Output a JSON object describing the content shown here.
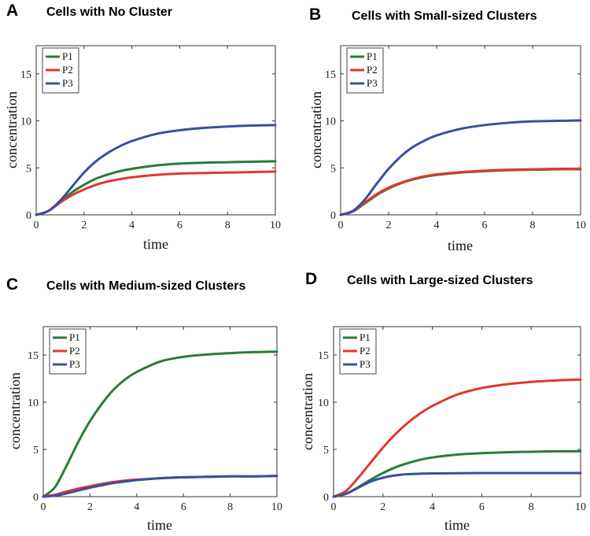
{
  "colors": {
    "P1": "#2a7b3a",
    "P2": "#e0382c",
    "P3": "#3a4ea0"
  },
  "chart_data": [
    {
      "type": "line",
      "letter": "A",
      "title": "Cells with No Cluster",
      "xlabel": "time",
      "ylabel": "concentration",
      "xlim": [
        0,
        10
      ],
      "ylim": [
        0,
        18
      ],
      "xticks": [
        0,
        2,
        4,
        6,
        8,
        10
      ],
      "yticks": [
        0,
        5,
        10,
        15
      ],
      "legend_position": "top-left",
      "x": [
        0,
        0.5,
        1,
        1.5,
        2,
        2.5,
        3,
        3.5,
        4,
        5,
        6,
        7,
        8,
        9,
        10
      ],
      "series": [
        {
          "name": "P1",
          "values": [
            0,
            0.4,
            1.4,
            2.4,
            3.2,
            3.85,
            4.3,
            4.65,
            4.9,
            5.25,
            5.45,
            5.55,
            5.6,
            5.65,
            5.7
          ]
        },
        {
          "name": "P2",
          "values": [
            0,
            0.4,
            1.3,
            2.1,
            2.7,
            3.2,
            3.55,
            3.8,
            4.0,
            4.25,
            4.4,
            4.45,
            4.5,
            4.55,
            4.6
          ]
        },
        {
          "name": "P3",
          "values": [
            0,
            0.4,
            1.5,
            3.0,
            4.5,
            5.7,
            6.6,
            7.3,
            7.85,
            8.6,
            9.0,
            9.25,
            9.4,
            9.5,
            9.55
          ]
        }
      ]
    },
    {
      "type": "line",
      "letter": "B",
      "title": "Cells with Small-sized Clusters",
      "xlabel": "time",
      "ylabel": "concentration",
      "xlim": [
        0,
        10
      ],
      "ylim": [
        0,
        18
      ],
      "xticks": [
        0,
        2,
        4,
        6,
        8,
        10
      ],
      "yticks": [
        0,
        5,
        10,
        15
      ],
      "legend_position": "top-left",
      "x": [
        0,
        0.5,
        1,
        1.5,
        2,
        2.5,
        3,
        3.5,
        4,
        5,
        6,
        7,
        8,
        9,
        10
      ],
      "series": [
        {
          "name": "P1",
          "values": [
            0,
            0.35,
            1.2,
            2.1,
            2.8,
            3.35,
            3.75,
            4.05,
            4.25,
            4.5,
            4.65,
            4.75,
            4.8,
            4.85,
            4.85
          ]
        },
        {
          "name": "P2",
          "values": [
            0,
            0.4,
            1.3,
            2.2,
            2.9,
            3.4,
            3.8,
            4.1,
            4.3,
            4.55,
            4.7,
            4.8,
            4.85,
            4.9,
            4.9
          ]
        },
        {
          "name": "P3",
          "values": [
            0,
            0.4,
            1.6,
            3.3,
            4.9,
            6.2,
            7.2,
            7.9,
            8.45,
            9.15,
            9.55,
            9.8,
            9.95,
            10.0,
            10.05
          ]
        }
      ]
    },
    {
      "type": "line",
      "letter": "C",
      "title": "Cells with Medium-sized Clusters",
      "xlabel": "time",
      "ylabel": "concentration",
      "xlim": [
        0,
        10
      ],
      "ylim": [
        0,
        18
      ],
      "xticks": [
        0,
        2,
        4,
        6,
        8,
        10
      ],
      "yticks": [
        0,
        5,
        10,
        15
      ],
      "legend_position": "top-left",
      "x": [
        0,
        0.5,
        1,
        1.5,
        2,
        2.5,
        3,
        3.5,
        4,
        5,
        6,
        7,
        8,
        9,
        10
      ],
      "series": [
        {
          "name": "P1",
          "values": [
            0,
            1.0,
            3.3,
            5.8,
            8.0,
            9.8,
            11.3,
            12.4,
            13.2,
            14.3,
            14.8,
            15.05,
            15.2,
            15.3,
            15.35
          ]
        },
        {
          "name": "P2",
          "values": [
            0,
            0.2,
            0.55,
            0.85,
            1.1,
            1.35,
            1.55,
            1.7,
            1.8,
            1.95,
            2.05,
            2.1,
            2.15,
            2.15,
            2.2
          ]
        },
        {
          "name": "P3",
          "values": [
            0,
            0.1,
            0.35,
            0.65,
            0.95,
            1.2,
            1.45,
            1.6,
            1.75,
            1.95,
            2.05,
            2.1,
            2.15,
            2.15,
            2.2
          ]
        }
      ]
    },
    {
      "type": "line",
      "letter": "D",
      "title": "Cells with Large-sized Clusters",
      "xlabel": "time",
      "ylabel": "concentration",
      "xlim": [
        0,
        10
      ],
      "ylim": [
        0,
        18
      ],
      "xticks": [
        0,
        2,
        4,
        6,
        8,
        10
      ],
      "yticks": [
        0,
        5,
        10,
        15
      ],
      "legend_position": "top-left",
      "x": [
        0,
        0.5,
        1,
        1.5,
        2,
        2.5,
        3,
        3.5,
        4,
        5,
        6,
        7,
        8,
        9,
        10
      ],
      "series": [
        {
          "name": "P1",
          "values": [
            0,
            0.3,
            1.0,
            1.8,
            2.5,
            3.1,
            3.55,
            3.9,
            4.15,
            4.45,
            4.6,
            4.7,
            4.75,
            4.8,
            4.8
          ]
        },
        {
          "name": "P2",
          "values": [
            0,
            0.6,
            2.0,
            3.6,
            5.2,
            6.6,
            7.8,
            8.8,
            9.6,
            10.8,
            11.5,
            11.9,
            12.15,
            12.3,
            12.4
          ]
        },
        {
          "name": "P3",
          "values": [
            0,
            0.3,
            0.95,
            1.6,
            2.0,
            2.25,
            2.38,
            2.43,
            2.46,
            2.48,
            2.5,
            2.5,
            2.5,
            2.5,
            2.5
          ]
        }
      ]
    }
  ]
}
